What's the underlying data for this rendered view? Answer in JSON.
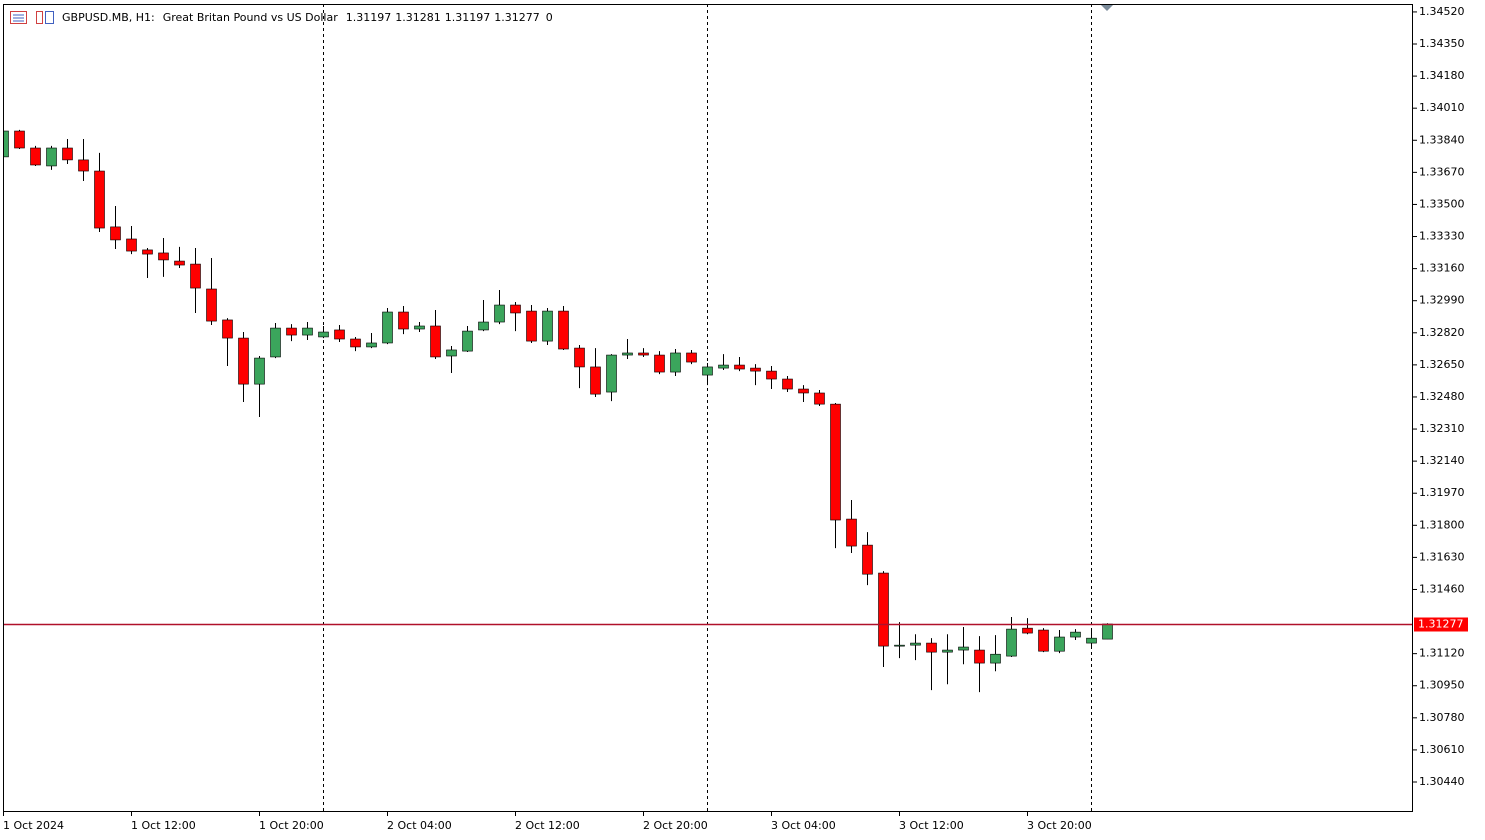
{
  "chart_data": {
    "type": "candlestick",
    "symbol": "GBPUSD.MB, H1:",
    "description": "Great Britan Pound vs US Dollar",
    "spread": 0,
    "open": [
      1.33752,
      1.33889,
      1.33799,
      1.33704,
      1.33799,
      1.33736,
      1.33677,
      1.33381,
      1.33317,
      1.33259,
      1.33243,
      1.332,
      1.33184,
      1.33052,
      1.32888,
      1.32792,
      1.32548,
      1.32692,
      1.32845,
      1.32808,
      1.32798,
      1.32835,
      1.32787,
      1.32745,
      1.32766,
      1.3293,
      1.3284,
      1.32856,
      1.32697,
      1.32723,
      1.32835,
      1.32877,
      1.32967,
      1.32935,
      1.32776,
      1.32935,
      1.32739,
      1.32639,
      1.32506,
      1.32702,
      1.32713,
      1.32702,
      1.32612,
      1.32713,
      1.32596,
      1.32633,
      1.32649,
      1.32633,
      1.32617,
      1.32575,
      1.32522,
      1.32501,
      1.32442,
      1.31833,
      1.31695,
      1.31547,
      1.3116,
      1.31165,
      1.31176,
      1.31128,
      1.31139,
      1.31139,
      1.3107,
      1.31107,
      1.31255,
      1.31245,
      1.31133,
      1.31208,
      1.31176,
      1.31197
    ],
    "high": [
      1.339,
      1.33895,
      1.3381,
      1.3381,
      1.33847,
      1.33847,
      1.33773,
      1.33492,
      1.33386,
      1.33269,
      1.33322,
      1.33275,
      1.33269,
      1.33216,
      1.32898,
      1.32824,
      1.32697,
      1.32872,
      1.32866,
      1.32877,
      1.32856,
      1.32861,
      1.32798,
      1.32819,
      1.32951,
      1.32962,
      1.32877,
      1.32941,
      1.3275,
      1.32856,
      1.32994,
      1.33047,
      1.32983,
      1.32967,
      1.32951,
      1.32962,
      1.32755,
      1.32739,
      1.32707,
      1.32787,
      1.32739,
      1.32723,
      1.32734,
      1.32729,
      1.3266,
      1.32707,
      1.32692,
      1.32654,
      1.32644,
      1.32591,
      1.32543,
      1.32517,
      1.32448,
      1.31934,
      1.31764,
      1.31557,
      1.31287,
      1.31223,
      1.31202,
      1.31223,
      1.31261,
      1.31213,
      1.31218,
      1.31314,
      1.31308,
      1.31255,
      1.31245,
      1.3125,
      1.31245,
      1.31281
    ],
    "low": [
      1.33746,
      1.33794,
      1.33704,
      1.33683,
      1.33714,
      1.33624,
      1.33354,
      1.33264,
      1.33237,
      1.3311,
      1.33116,
      1.33163,
      1.32925,
      1.32861,
      1.32644,
      1.32453,
      1.32374,
      1.32686,
      1.32776,
      1.32782,
      1.32792,
      1.32771,
      1.32723,
      1.32739,
      1.3276,
      1.32813,
      1.32824,
      1.32681,
      1.32607,
      1.32718,
      1.32829,
      1.32866,
      1.32829,
      1.32766,
      1.32755,
      1.32729,
      1.32527,
      1.3248,
      1.32458,
      1.32681,
      1.32692,
      1.32601,
      1.32591,
      1.32654,
      1.32543,
      1.32623,
      1.32617,
      1.32543,
      1.32522,
      1.32506,
      1.32453,
      1.32432,
      1.31679,
      1.31653,
      1.31483,
      1.31049,
      1.31096,
      1.31086,
      1.30927,
      1.30958,
      1.31064,
      1.30916,
      1.31027,
      1.31102,
      1.31223,
      1.31128,
      1.31123,
      1.31192,
      1.3116,
      1.31197
    ],
    "close": [
      1.33889,
      1.33799,
      1.33709,
      1.33799,
      1.33736,
      1.33677,
      1.33375,
      1.33312,
      1.33253,
      1.33237,
      1.33206,
      1.33179,
      1.33057,
      1.32882,
      1.32792,
      1.32548,
      1.32686,
      1.32845,
      1.32808,
      1.32845,
      1.32824,
      1.32787,
      1.32745,
      1.32766,
      1.3293,
      1.3284,
      1.32856,
      1.32692,
      1.32729,
      1.32829,
      1.32877,
      1.32967,
      1.32925,
      1.32776,
      1.32935,
      1.32734,
      1.32639,
      1.32495,
      1.32702,
      1.32713,
      1.32702,
      1.32612,
      1.32713,
      1.32665,
      1.32639,
      1.32649,
      1.32628,
      1.32617,
      1.32575,
      1.32522,
      1.32501,
      1.32442,
      1.31828,
      1.3169,
      1.31541,
      1.3116,
      1.31165,
      1.31176,
      1.31128,
      1.31139,
      1.31155,
      1.3107,
      1.31117,
      1.3125,
      1.31229,
      1.31133,
      1.31208,
      1.31234,
      1.31202,
      1.31277
    ],
    "up_color": "#3ba55c",
    "down_color": "#ff0000",
    "wick_color": "#000000",
    "price_line_color": "#b0102a",
    "xticks": [
      {
        "value": 0,
        "label": "1 Oct 2024"
      },
      {
        "value": 8,
        "label": "1 Oct 12:00"
      },
      {
        "value": 16,
        "label": "1 Oct 20:00"
      },
      {
        "value": 24,
        "label": "2 Oct 04:00"
      },
      {
        "value": 32,
        "label": "2 Oct 12:00"
      },
      {
        "value": 40,
        "label": "2 Oct 20:00"
      },
      {
        "value": 48,
        "label": "3 Oct 04:00"
      },
      {
        "value": 56,
        "label": "3 Oct 12:00"
      },
      {
        "value": 64,
        "label": "3 Oct 20:00"
      }
    ],
    "separators": [
      20,
      44,
      68
    ],
    "ylim": [
      1.30281,
      1.34562
    ],
    "yticks": [
      {
        "value": 1.3452,
        "label": "1.34520"
      },
      {
        "value": 1.3435,
        "label": "1.34350"
      },
      {
        "value": 1.3418,
        "label": "1.34180"
      },
      {
        "value": 1.3401,
        "label": "1.34010"
      },
      {
        "value": 1.3384,
        "label": "1.33840"
      },
      {
        "value": 1.3367,
        "label": "1.33670"
      },
      {
        "value": 1.335,
        "label": "1.33500"
      },
      {
        "value": 1.3333,
        "label": "1.33330"
      },
      {
        "value": 1.3316,
        "label": "1.33160"
      },
      {
        "value": 1.3299,
        "label": "1.32990"
      },
      {
        "value": 1.3282,
        "label": "1.32820"
      },
      {
        "value": 1.3265,
        "label": "1.32650"
      },
      {
        "value": 1.3248,
        "label": "1.32480"
      },
      {
        "value": 1.3231,
        "label": "1.32310"
      },
      {
        "value": 1.3214,
        "label": "1.32140"
      },
      {
        "value": 1.3197,
        "label": "1.31970"
      },
      {
        "value": 1.318,
        "label": "1.31800"
      },
      {
        "value": 1.3163,
        "label": "1.31630"
      },
      {
        "value": 1.3146,
        "label": "1.31460"
      },
      {
        "value": 1.3112,
        "label": "1.31120"
      },
      {
        "value": 1.3095,
        "label": "1.30950"
      },
      {
        "value": 1.3078,
        "label": "1.30780"
      },
      {
        "value": 1.3061,
        "label": "1.30610"
      },
      {
        "value": 1.3044,
        "label": "1.30440"
      }
    ]
  }
}
